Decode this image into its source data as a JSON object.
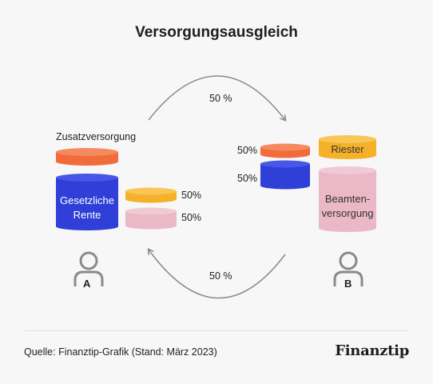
{
  "title": "Versorgungsausgleich",
  "arrow_top_label": "50 %",
  "arrow_bottom_label": "50 %",
  "person_a": {
    "zusatz_label": "Zusatzversorgung",
    "gesetzliche_label": "Gesetzliche\nRente",
    "share_1": "50%",
    "share_2": "50%",
    "letter": "A"
  },
  "person_b": {
    "riester_label": "Riester",
    "beamten_label": "Beamten-\nversorgung",
    "share_1": "50%",
    "share_2": "50%",
    "letter": "B"
  },
  "footer": {
    "source": "Quelle: Finanztip-Grafik (Stand: März 2023)",
    "logo": "Finanztip"
  },
  "colors": {
    "orange": "#f26b3a",
    "blue": "#2f3fd8",
    "yellow": "#f5b229",
    "pink": "#eab8c6",
    "gray": "#8a8a8a"
  }
}
